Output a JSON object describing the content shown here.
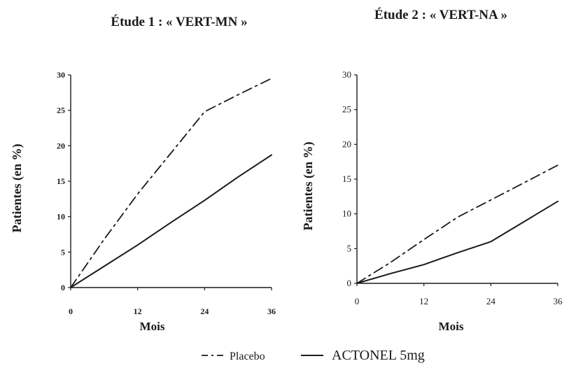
{
  "chart_data": [
    {
      "type": "line",
      "title": "Étude 1 : « VERT-MN »",
      "xlabel": "Mois",
      "ylabel": "Patientes (en %)",
      "xlim": [
        0,
        36
      ],
      "ylim": [
        0,
        30
      ],
      "x_ticks": [
        "0",
        "12",
        "24",
        "36"
      ],
      "y_ticks": [
        "0",
        "5",
        "10",
        "15",
        "20",
        "25",
        "30"
      ],
      "grid": false,
      "series": [
        {
          "name": "Placebo",
          "style": "dash-dot",
          "x": [
            0,
            6,
            12,
            18,
            24,
            30,
            36
          ],
          "y": [
            0,
            6.8,
            13.2,
            19,
            24.8,
            27.2,
            29.5
          ]
        },
        {
          "name": "ACTONEL 5mg",
          "style": "solid",
          "x": [
            0,
            6,
            12,
            18,
            24,
            30,
            36
          ],
          "y": [
            0,
            3,
            6,
            9.2,
            12.3,
            15.6,
            18.7
          ]
        }
      ]
    },
    {
      "type": "line",
      "title": "Étude 2 : « VERT-NA »",
      "xlabel": "Mois",
      "ylabel": "Patientes (en %)",
      "xlim": [
        0,
        36
      ],
      "ylim": [
        0,
        30
      ],
      "x_ticks": [
        "0",
        "12",
        "24",
        "36"
      ],
      "y_ticks": [
        "0",
        "5",
        "10",
        "15",
        "20",
        "25",
        "30"
      ],
      "grid": false,
      "series": [
        {
          "name": "Placebo",
          "style": "dash-dot",
          "x": [
            0,
            6,
            12,
            18,
            24,
            30,
            36
          ],
          "y": [
            0,
            3,
            6.3,
            9.5,
            12,
            14.5,
            17
          ]
        },
        {
          "name": "ACTONEL 5mg",
          "style": "solid",
          "x": [
            0,
            6,
            12,
            18,
            24,
            30,
            36
          ],
          "y": [
            0,
            1.4,
            2.7,
            4.4,
            6,
            8.9,
            11.8
          ]
        }
      ]
    }
  ],
  "legend": {
    "placement": "bottom-center",
    "items": [
      {
        "label": "Placebo",
        "style": "dash-dot"
      },
      {
        "label": "ACTONEL 5mg",
        "style": "solid"
      }
    ]
  },
  "colors": {
    "line": "#1a1a1a",
    "axis": "#1a1a1a",
    "background": "#ffffff"
  }
}
